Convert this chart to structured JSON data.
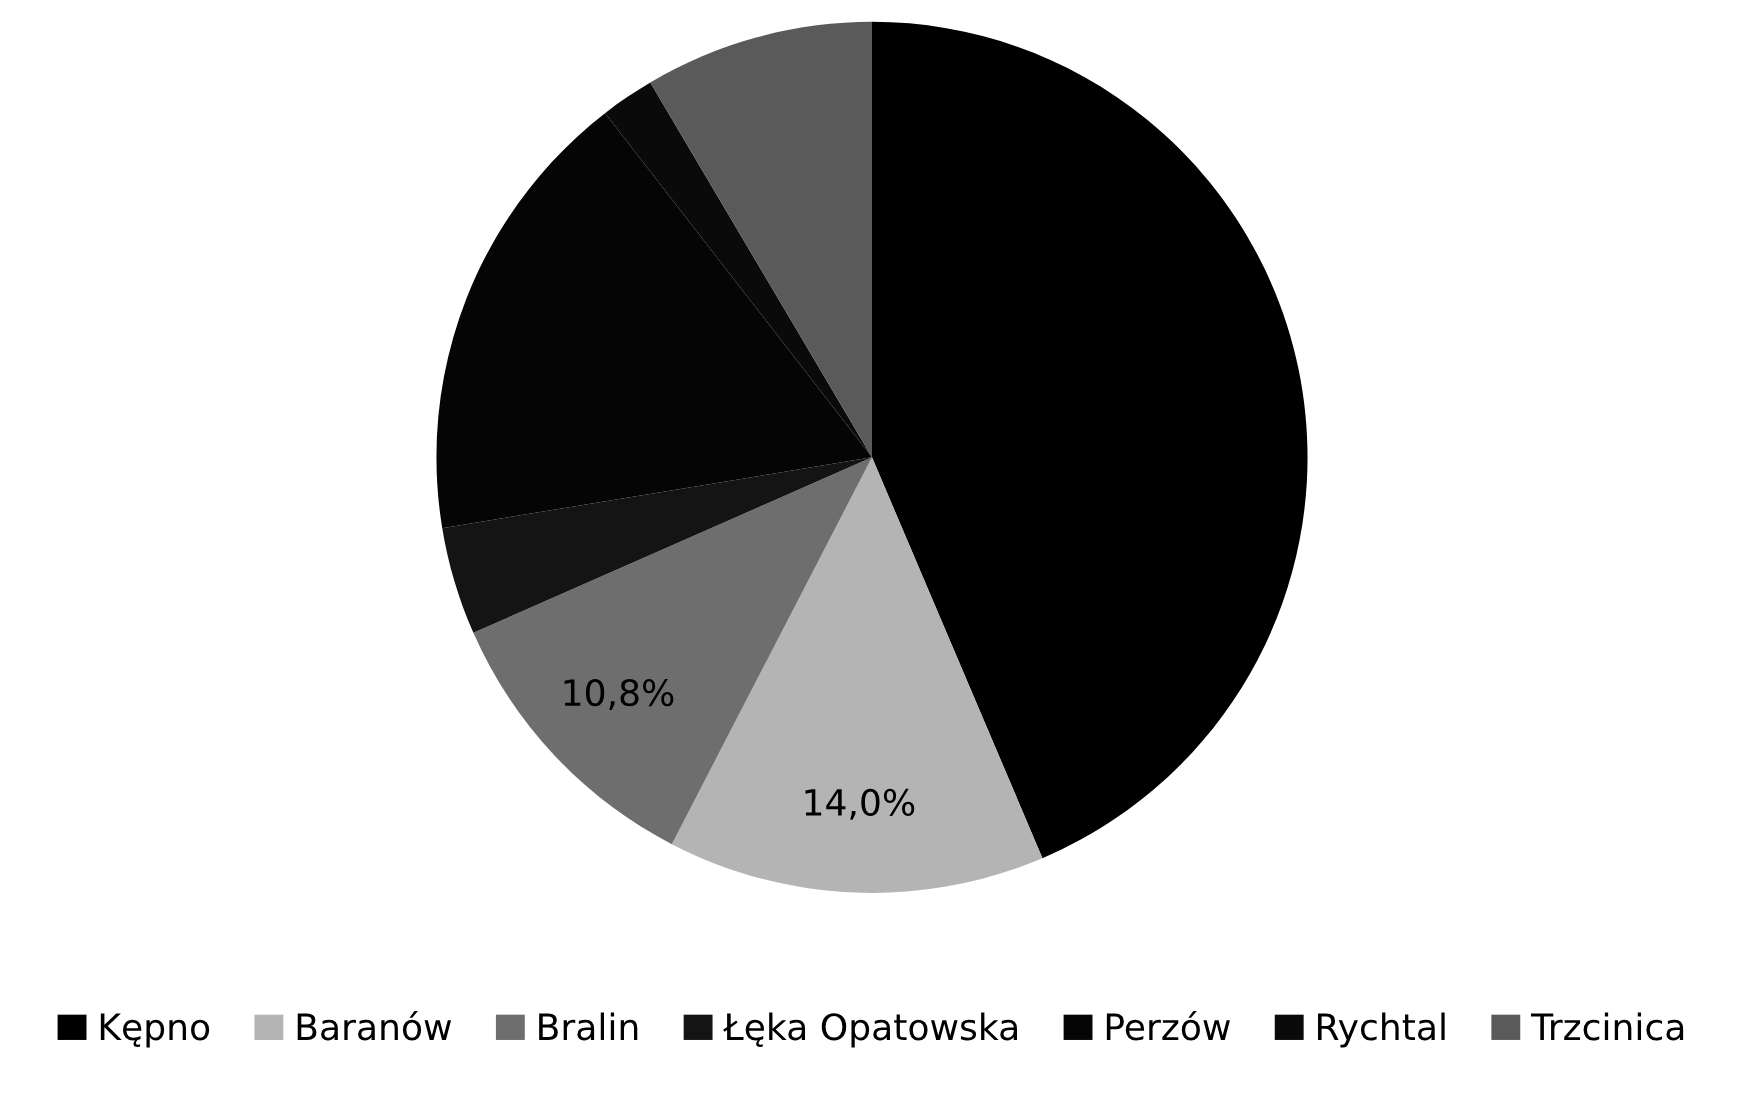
{
  "chart_data": {
    "type": "pie",
    "categories": [
      "Kępno",
      "Baranów",
      "Bralin",
      "Łęka Opatowska",
      "Perzów",
      "Rychtal",
      "Trzcinica"
    ],
    "values": [
      43.6,
      14.0,
      10.8,
      4.0,
      17.1,
      2.0,
      8.5
    ],
    "colors": [
      "#000000",
      "#b4b4b4",
      "#6e6e6e",
      "#141414",
      "#050505",
      "#0a0a0a",
      "#5a5a5a"
    ],
    "value_labels": [
      null,
      "14,0%",
      "10,8%",
      null,
      null,
      null,
      null
    ],
    "legend": "bottom"
  }
}
